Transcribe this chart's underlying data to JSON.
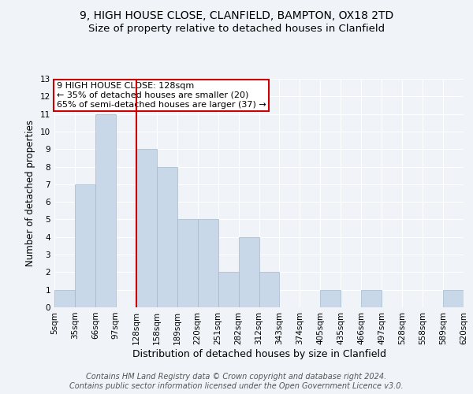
{
  "title_line1": "9, HIGH HOUSE CLOSE, CLANFIELD, BAMPTON, OX18 2TD",
  "title_line2": "Size of property relative to detached houses in Clanfield",
  "xlabel": "Distribution of detached houses by size in Clanfield",
  "ylabel": "Number of detached properties",
  "footer_line1": "Contains HM Land Registry data © Crown copyright and database right 2024.",
  "footer_line2": "Contains public sector information licensed under the Open Government Licence v3.0.",
  "annotation_line1": "9 HIGH HOUSE CLOSE: 128sqm",
  "annotation_line2": "← 35% of detached houses are smaller (20)",
  "annotation_line3": "65% of semi-detached houses are larger (37) →",
  "bin_labels": [
    "5sqm",
    "35sqm",
    "66sqm",
    "97sqm",
    "128sqm",
    "158sqm",
    "189sqm",
    "220sqm",
    "251sqm",
    "282sqm",
    "312sqm",
    "343sqm",
    "374sqm",
    "405sqm",
    "435sqm",
    "466sqm",
    "497sqm",
    "528sqm",
    "558sqm",
    "589sqm",
    "620sqm"
  ],
  "bar_values": [
    1,
    7,
    11,
    0,
    9,
    8,
    5,
    5,
    2,
    4,
    2,
    0,
    0,
    1,
    0,
    1,
    0,
    0,
    0,
    1
  ],
  "bar_color": "#c8d8e8",
  "bar_edge_color": "#a0b8cc",
  "red_line_bin_index": 4,
  "ylim": [
    0,
    13
  ],
  "yticks": [
    0,
    1,
    2,
    3,
    4,
    5,
    6,
    7,
    8,
    9,
    10,
    11,
    12,
    13
  ],
  "background_color": "#f0f4f8",
  "plot_bg_color": "#f0f4f8",
  "grid_color": "#ffffff",
  "annotation_box_color": "#ffffff",
  "annotation_box_edge": "#cc0000",
  "red_line_color": "#cc0000",
  "title_fontsize": 10,
  "subtitle_fontsize": 9.5,
  "tick_fontsize": 7.5,
  "ylabel_fontsize": 8.5,
  "xlabel_fontsize": 9,
  "footer_fontsize": 7,
  "annotation_fontsize": 8
}
